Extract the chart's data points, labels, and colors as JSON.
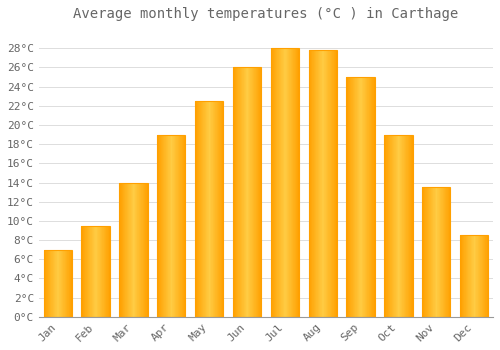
{
  "title": "Average monthly temperatures (°C ) in Carthage",
  "months": [
    "Jan",
    "Feb",
    "Mar",
    "Apr",
    "May",
    "Jun",
    "Jul",
    "Aug",
    "Sep",
    "Oct",
    "Nov",
    "Dec"
  ],
  "values": [
    7.0,
    9.5,
    14.0,
    19.0,
    22.5,
    26.0,
    28.0,
    27.8,
    25.0,
    19.0,
    13.5,
    8.5
  ],
  "bar_color_center": "#FFCC44",
  "bar_color_edge": "#FFA000",
  "background_color": "#FFFFFF",
  "grid_color": "#DDDDDD",
  "text_color": "#666666",
  "title_fontsize": 10,
  "tick_fontsize": 8,
  "ylim": [
    0,
    30
  ],
  "yticks": [
    0,
    2,
    4,
    6,
    8,
    10,
    12,
    14,
    16,
    18,
    20,
    22,
    24,
    26,
    28
  ],
  "bar_width": 0.75
}
